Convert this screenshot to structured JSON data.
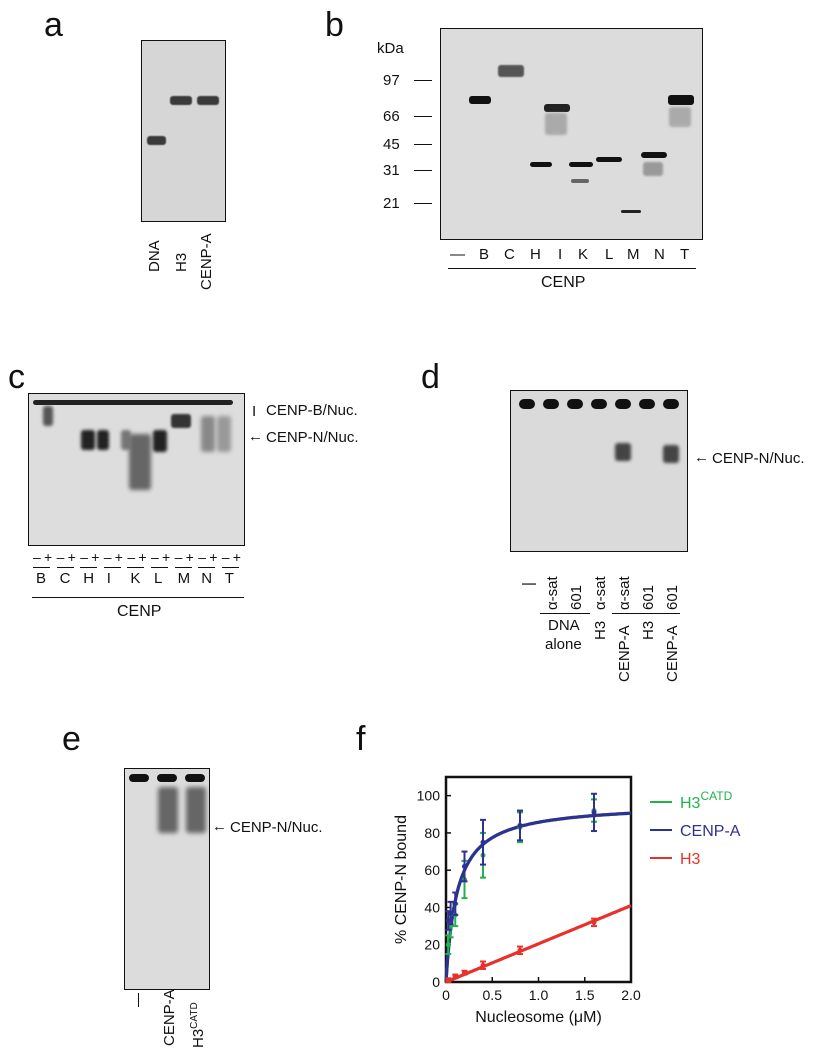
{
  "panels": {
    "a": {
      "label": "a",
      "lanes": [
        "DNA",
        "H3",
        "CENP-A"
      ]
    },
    "b": {
      "label": "b",
      "unit": "kDa",
      "markers": [
        "97",
        "66",
        "45",
        "31",
        "21"
      ],
      "lanes": [
        "—",
        "B",
        "C",
        "H",
        "I",
        "K",
        "L",
        "M",
        "N",
        "T"
      ],
      "group_label": "CENP"
    },
    "c": {
      "label": "c",
      "signs": [
        "–",
        "+"
      ],
      "lanes": [
        "B",
        "C",
        "H",
        "I",
        "K",
        "L",
        "M",
        "N",
        "T"
      ],
      "group_label": "CENP",
      "annotations": [
        "CENP-B/Nuc.",
        "CENP-N/Nuc."
      ]
    },
    "d": {
      "label": "d",
      "dna_row": [
        "α-sat",
        "601",
        "α-sat",
        "α-sat",
        "601",
        "601"
      ],
      "dna_alone_1": "DNA",
      "dna_alone_2": "alone",
      "nuc_row": [
        "H3",
        "CENP-A",
        "H3",
        "CENP-A"
      ],
      "annotation": "CENP-N/Nuc."
    },
    "e": {
      "label": "e",
      "lane_cenpa": "CENP-A",
      "lane_h3_base": "H3",
      "lane_h3_sup": "CATD",
      "annotation": "CENP-N/Nuc."
    },
    "f": {
      "label": "f"
    }
  },
  "chart_data": {
    "type": "scatter",
    "title": "",
    "xlabel": "Nucleosome (μM)",
    "ylabel": "% CENP-N bound",
    "xlim": [
      0,
      2.0
    ],
    "ylim": [
      0,
      110
    ],
    "xticks": [
      "0",
      "0.5",
      "1.0",
      "1.5",
      "2.0"
    ],
    "yticks": [
      "0",
      "20",
      "40",
      "60",
      "80",
      "100"
    ],
    "grid": false,
    "legend_position": "right",
    "series": [
      {
        "name": "H3CATD",
        "label_base": "H3",
        "label_sup": "CATD",
        "color": "#22b24c",
        "x": [
          0.025,
          0.05,
          0.1,
          0.2,
          0.4,
          0.8,
          1.6
        ],
        "y": [
          20,
          30,
          36,
          55,
          68,
          83,
          92
        ],
        "err": [
          5,
          6,
          6,
          10,
          12,
          8,
          6
        ],
        "fit": {
          "model": "hyperbolic",
          "bmax": 96,
          "kd": 0.12
        }
      },
      {
        "name": "CENP-A",
        "label_base": "CENP-A",
        "label_sup": "",
        "color": "#2e3192",
        "x": [
          0.025,
          0.05,
          0.1,
          0.2,
          0.4,
          0.8,
          1.6
        ],
        "y": [
          33,
          37,
          42,
          62,
          75,
          84,
          91
        ],
        "err": [
          5,
          6,
          6,
          8,
          12,
          8,
          10
        ],
        "fit": {
          "model": "hyperbolic",
          "bmax": 96,
          "kd": 0.12
        }
      },
      {
        "name": "H3",
        "label_base": "H3",
        "label_sup": "",
        "color": "#e8312b",
        "x": [
          0.025,
          0.1,
          0.2,
          0.4,
          0.8,
          1.6
        ],
        "y": [
          1,
          3,
          5,
          9,
          17,
          32
        ],
        "err": [
          1,
          1,
          1,
          2,
          2,
          2
        ],
        "fit": {
          "model": "linear",
          "slope": 20.5
        }
      }
    ]
  }
}
